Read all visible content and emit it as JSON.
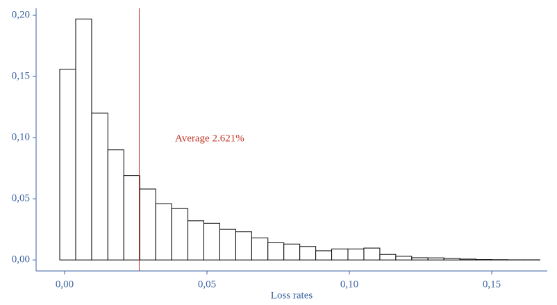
{
  "chart_data": {
    "type": "histogram",
    "x_label": "Loss rates",
    "bins": [
      -0.0017,
      0.0039,
      0.0095,
      0.0152,
      0.0208,
      0.0264,
      0.032,
      0.0376,
      0.0433,
      0.0489,
      0.0545,
      0.0601,
      0.0657,
      0.0714,
      0.077,
      0.0826,
      0.0882,
      0.0938,
      0.0995,
      0.1051,
      0.1107,
      0.1163,
      0.1219,
      0.1276,
      0.1332,
      0.1388,
      0.1444,
      0.15,
      0.1557,
      0.1613,
      0.1669
    ],
    "values": [
      0.156,
      0.197,
      0.12,
      0.09,
      0.069,
      0.058,
      0.046,
      0.042,
      0.032,
      0.03,
      0.025,
      0.023,
      0.018,
      0.014,
      0.013,
      0.011,
      0.0075,
      0.009,
      0.009,
      0.0097,
      0.0045,
      0.003,
      0.0018,
      0.0017,
      0.0012,
      0.0007,
      0.0003,
      0.0002,
      0.0001,
      0.0001
    ],
    "bar_fill": "#ffffff",
    "bar_edge": "#000000",
    "xlim": [
      -0.01,
      0.1695
    ],
    "ylim": [
      -0.009,
      0.2057
    ],
    "xticks": [
      {
        "value": 0,
        "label": "0,00"
      },
      {
        "value": 0.05,
        "label": "0,05"
      },
      {
        "value": 0.1,
        "label": "0,10"
      },
      {
        "value": 0.15,
        "label": "0,15"
      }
    ],
    "yticks": [
      {
        "value": 0,
        "label": "0,00"
      },
      {
        "value": 0.05,
        "label": "0,05"
      },
      {
        "value": 0.1,
        "label": "0,10"
      },
      {
        "value": 0.15,
        "label": "0,15"
      },
      {
        "value": 0.2,
        "label": "0,20"
      }
    ],
    "axis_color": "#3a62a0",
    "average_line": {
      "value": 0.02621,
      "label": "Average 2.621%",
      "color": "#c0392b"
    }
  }
}
